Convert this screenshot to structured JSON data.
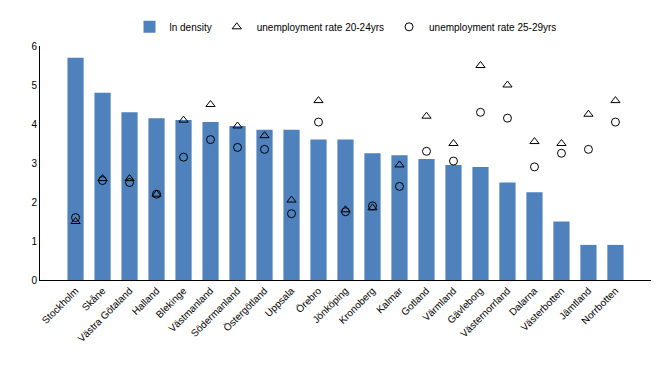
{
  "chart_data": {
    "type": "bar",
    "categories": [
      "Stockholm",
      "Skåne",
      "Västra Götaland",
      "Halland",
      "Blekinge",
      "Västmanland",
      "Södermanland",
      "Östergötland",
      "Uppsala",
      "Örebro",
      "Jönköping",
      "Kronoberg",
      "Kalmar",
      "Gotland",
      "Värmland",
      "Gävleborg",
      "Västernorrland",
      "Dalarna",
      "Västerbotten",
      "Jämtland",
      "Norrbotten"
    ],
    "series": [
      {
        "name": "ln density",
        "type": "bar",
        "color": "#4f81bd",
        "values": [
          5.7,
          4.8,
          4.3,
          4.15,
          4.1,
          4.05,
          3.95,
          3.85,
          3.85,
          3.6,
          3.6,
          3.25,
          3.2,
          3.1,
          2.95,
          2.9,
          2.5,
          2.25,
          1.5,
          0.9,
          0.9
        ]
      },
      {
        "name": "unemployment rate 20-24yrs",
        "type": "scatter",
        "marker": "triangle",
        "color": "#000000",
        "values": [
          1.5,
          2.6,
          2.6,
          2.2,
          4.1,
          4.5,
          3.95,
          3.7,
          2.05,
          4.6,
          1.8,
          1.85,
          2.95,
          4.2,
          3.5,
          5.5,
          5.0,
          3.55,
          3.5,
          4.25,
          4.6
        ]
      },
      {
        "name": "unemployment rate 25-29yrs",
        "type": "scatter",
        "marker": "circle",
        "color": "#000000",
        "values": [
          1.6,
          2.55,
          2.5,
          2.2,
          3.15,
          3.6,
          3.4,
          3.35,
          1.7,
          4.05,
          1.75,
          1.9,
          2.4,
          3.3,
          3.05,
          4.3,
          4.15,
          2.9,
          3.25,
          3.35,
          4.05
        ]
      }
    ],
    "ylim": [
      0,
      6
    ],
    "yticks": [
      0,
      1,
      2,
      3,
      4,
      5,
      6
    ],
    "grid": false,
    "legend": "top"
  }
}
